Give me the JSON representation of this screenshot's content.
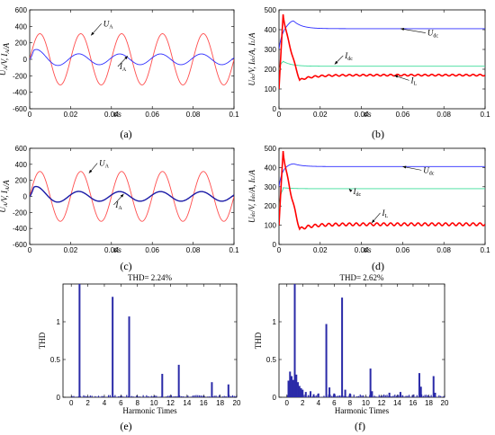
{
  "colors": {
    "red": "#ff4d4d",
    "blue": "#2c2cff",
    "green": "#3ddc9a",
    "redBold": "#ff0000",
    "navy": "#1a1aa6",
    "bar": "#2a2aa8"
  },
  "chart_data": [
    {
      "id": "a",
      "caption": "(a)",
      "type": "line",
      "kind": "wave",
      "ylabel_main": "U",
      "ylabel_main_sub": "A",
      "ylabel_rest": "/V, ",
      "ylabel_second": "I",
      "ylabel_second_sub": "A",
      "ylabel_end": "/A",
      "xlabel": "t/s",
      "xlim": [
        0,
        0.1
      ],
      "ylim": [
        -600,
        600
      ],
      "xticks": [
        0,
        0.02,
        0.04,
        0.06,
        0.08,
        0.1
      ],
      "xtick_labels": [
        "0",
        "0.02",
        "0.04",
        "0.06",
        "0.08",
        "0.1"
      ],
      "yticks": [
        -600,
        -400,
        -200,
        0,
        200,
        400,
        600
      ],
      "ytick_labels": [
        "-600",
        "-400",
        "-200",
        "0",
        "200",
        "400",
        "600"
      ],
      "series": [
        {
          "name": "UA",
          "color": "#ff4d4d",
          "amplitude": 311,
          "freq_hz": 50,
          "phase_rad": 0
        },
        {
          "name": "IA",
          "color": "#2c2cff",
          "amplitude": 65,
          "freq_hz": 50,
          "phase_rad": 0.3,
          "startup_peak": 165
        }
      ],
      "annotations": [
        {
          "main": "U",
          "sub": "A",
          "x": 0.036,
          "y": 400,
          "arrow_to": [
            0.03,
            290
          ]
        },
        {
          "main": "I",
          "sub": "A",
          "x": 0.044,
          "y": -120,
          "arrow_to": [
            0.048,
            40
          ]
        }
      ]
    },
    {
      "id": "b",
      "caption": "(b)",
      "type": "line",
      "kind": "dc",
      "ylabel": "U_dc/V, I_dc/A, I_L/A",
      "xlabel": "t/s",
      "xlim": [
        0,
        0.1
      ],
      "ylim": [
        0,
        500
      ],
      "xticks": [
        0,
        0.02,
        0.04,
        0.06,
        0.08,
        0.1
      ],
      "xtick_labels": [
        "0",
        "0.02",
        "0.04",
        "0.06",
        "0.08",
        "0.1"
      ],
      "yticks": [
        0,
        100,
        200,
        300,
        400,
        500
      ],
      "ytick_labels": [
        "0",
        "100",
        "200",
        "300",
        "400",
        "500"
      ],
      "series": [
        {
          "name": "Udc",
          "color": "#2c2cff",
          "final": 405,
          "peak": 445
        },
        {
          "name": "Idc",
          "color": "#3ddc9a",
          "final": 215,
          "peak": 240
        },
        {
          "name": "IL",
          "color": "#ff0000",
          "final": 170,
          "peak": 480,
          "dip": 145,
          "ripple": 4
        }
      ],
      "annotations": [
        {
          "main": "U",
          "sub": "dc",
          "x": 0.072,
          "y": 370,
          "arrow_to": [
            0.059,
            405
          ]
        },
        {
          "main": "I",
          "sub": "dc",
          "x": 0.032,
          "y": 255,
          "arrow_to": [
            0.027,
            225
          ]
        },
        {
          "main": "I",
          "sub": "L",
          "x": 0.064,
          "y": 130,
          "arrow_to": [
            0.056,
            168
          ]
        }
      ]
    },
    {
      "id": "c",
      "caption": "(c)",
      "type": "line",
      "kind": "wave",
      "ylabel_main": "U",
      "ylabel_main_sub": "A",
      "ylabel_rest": "/V, ",
      "ylabel_second": "I",
      "ylabel_second_sub": "A",
      "ylabel_end": "/A",
      "xlabel": "t/s",
      "xlim": [
        0,
        0.1
      ],
      "ylim": [
        -600,
        600
      ],
      "xticks": [
        0,
        0.02,
        0.04,
        0.06,
        0.08,
        0.1
      ],
      "xtick_labels": [
        "0",
        "0.02",
        "0.04",
        "0.06",
        "0.08",
        "0.1"
      ],
      "yticks": [
        -600,
        -400,
        -200,
        0,
        200,
        400,
        600
      ],
      "ytick_labels": [
        "-600",
        "-400",
        "-200",
        "0",
        "200",
        "400",
        "600"
      ],
      "series": [
        {
          "name": "UA",
          "color": "#ff4d4d",
          "amplitude": 311,
          "freq_hz": 50,
          "phase_rad": 0
        },
        {
          "name": "IA",
          "color": "#1a1aa6",
          "amplitude": 60,
          "freq_hz": 50,
          "phase_rad": 0.3,
          "startup_peak": 175
        }
      ],
      "annotations": [
        {
          "main": "U",
          "sub": "A",
          "x": 0.034,
          "y": 380,
          "arrow_to": [
            0.029,
            290
          ]
        },
        {
          "main": "I",
          "sub": "A",
          "x": 0.042,
          "y": -140,
          "arrow_to": [
            0.046,
            30
          ]
        }
      ]
    },
    {
      "id": "d",
      "caption": "(d)",
      "type": "line",
      "kind": "dc",
      "ylabel": "U_dc/V, I_dc/A, I_L/A",
      "xlabel": "t/s",
      "xlim": [
        0,
        0.1
      ],
      "ylim": [
        0,
        500
      ],
      "xticks": [
        0,
        0.02,
        0.04,
        0.06,
        0.08,
        0.1
      ],
      "xtick_labels": [
        "0",
        "0.02",
        "0.04",
        "0.06",
        "0.08",
        "0.1"
      ],
      "yticks": [
        0,
        100,
        200,
        300,
        400,
        500
      ],
      "ytick_labels": [
        "0",
        "100",
        "200",
        "300",
        "400",
        "500"
      ],
      "series": [
        {
          "name": "Udc",
          "color": "#2c2cff",
          "final": 405,
          "peak": 420
        },
        {
          "name": "Idc",
          "color": "#3ddc9a",
          "final": 290,
          "peak": 295
        },
        {
          "name": "IL",
          "color": "#ff0000",
          "final": 105,
          "peak": 490,
          "dip": 80,
          "ripple": 7
        }
      ],
      "annotations": [
        {
          "main": "U",
          "sub": "dc",
          "x": 0.07,
          "y": 372,
          "arrow_to": [
            0.06,
            405
          ]
        },
        {
          "main": "I",
          "sub": "dc",
          "x": 0.036,
          "y": 262,
          "arrow_to": [
            0.034,
            290
          ]
        },
        {
          "main": "I",
          "sub": "L",
          "x": 0.05,
          "y": 150,
          "arrow_to": [
            0.045,
            112
          ]
        }
      ]
    },
    {
      "id": "e",
      "caption": "(e)",
      "type": "bar",
      "kind": "harmonic",
      "title": "THD= 2.24%",
      "ylabel": "THD",
      "xlabel": "Harmonic Times",
      "xlim": [
        -1,
        20
      ],
      "ylim": [
        0,
        1.5
      ],
      "xticks": [
        0,
        2,
        4,
        6,
        8,
        10,
        12,
        14,
        16,
        18,
        20
      ],
      "xtick_labels": [
        "0",
        "2",
        "4",
        "6",
        "8",
        "10",
        "12",
        "14",
        "16",
        "18",
        "20"
      ],
      "yticks": [
        0,
        0.5,
        1
      ],
      "ytick_labels": [
        "0",
        "0.5",
        "1"
      ],
      "bars": [
        {
          "x": 1,
          "v": 1.5
        },
        {
          "x": 5,
          "v": 1.33
        },
        {
          "x": 7,
          "v": 1.07
        },
        {
          "x": 11,
          "v": 0.31
        },
        {
          "x": 13,
          "v": 0.43
        },
        {
          "x": 17,
          "v": 0.2
        },
        {
          "x": 19,
          "v": 0.17
        }
      ],
      "noise_level": 0.03
    },
    {
      "id": "f",
      "caption": "(f)",
      "type": "bar",
      "kind": "harmonic",
      "title": "THD= 2.62%",
      "ylabel": "THD",
      "xlabel": "Harmonic Times",
      "xlim": [
        -1,
        20
      ],
      "ylim": [
        0,
        1.5
      ],
      "xticks": [
        0,
        2,
        4,
        6,
        8,
        10,
        12,
        14,
        16,
        18,
        20
      ],
      "xtick_labels": [
        "0",
        "2",
        "4",
        "6",
        "8",
        "10",
        "12",
        "14",
        "16",
        "18",
        "20"
      ],
      "yticks": [
        0,
        0.5,
        1
      ],
      "ytick_labels": [
        "0",
        "0.5",
        "1"
      ],
      "bars": [
        {
          "x": 0.2,
          "v": 0.22
        },
        {
          "x": 0.4,
          "v": 0.34
        },
        {
          "x": 0.6,
          "v": 0.28
        },
        {
          "x": 0.8,
          "v": 0.23
        },
        {
          "x": 1.0,
          "v": 1.5
        },
        {
          "x": 1.2,
          "v": 0.3
        },
        {
          "x": 1.4,
          "v": 0.2
        },
        {
          "x": 1.6,
          "v": 0.15
        },
        {
          "x": 1.8,
          "v": 0.12
        },
        {
          "x": 2.0,
          "v": 0.1
        },
        {
          "x": 2.4,
          "v": 0.07
        },
        {
          "x": 3.0,
          "v": 0.08
        },
        {
          "x": 3.4,
          "v": 0.04
        },
        {
          "x": 4.0,
          "v": 0.05
        },
        {
          "x": 5.0,
          "v": 0.97
        },
        {
          "x": 5.4,
          "v": 0.13
        },
        {
          "x": 6.0,
          "v": 0.05
        },
        {
          "x": 7.0,
          "v": 1.32
        },
        {
          "x": 7.4,
          "v": 0.1
        },
        {
          "x": 8.0,
          "v": 0.05
        },
        {
          "x": 10.6,
          "v": 0.38
        },
        {
          "x": 10.8,
          "v": 0.08
        },
        {
          "x": 13.0,
          "v": 0.06
        },
        {
          "x": 14.4,
          "v": 0.07
        },
        {
          "x": 16.8,
          "v": 0.32
        },
        {
          "x": 17.0,
          "v": 0.14
        },
        {
          "x": 18.6,
          "v": 0.28
        },
        {
          "x": 18.8,
          "v": 0.06
        }
      ],
      "noise_level": 0.04
    }
  ]
}
